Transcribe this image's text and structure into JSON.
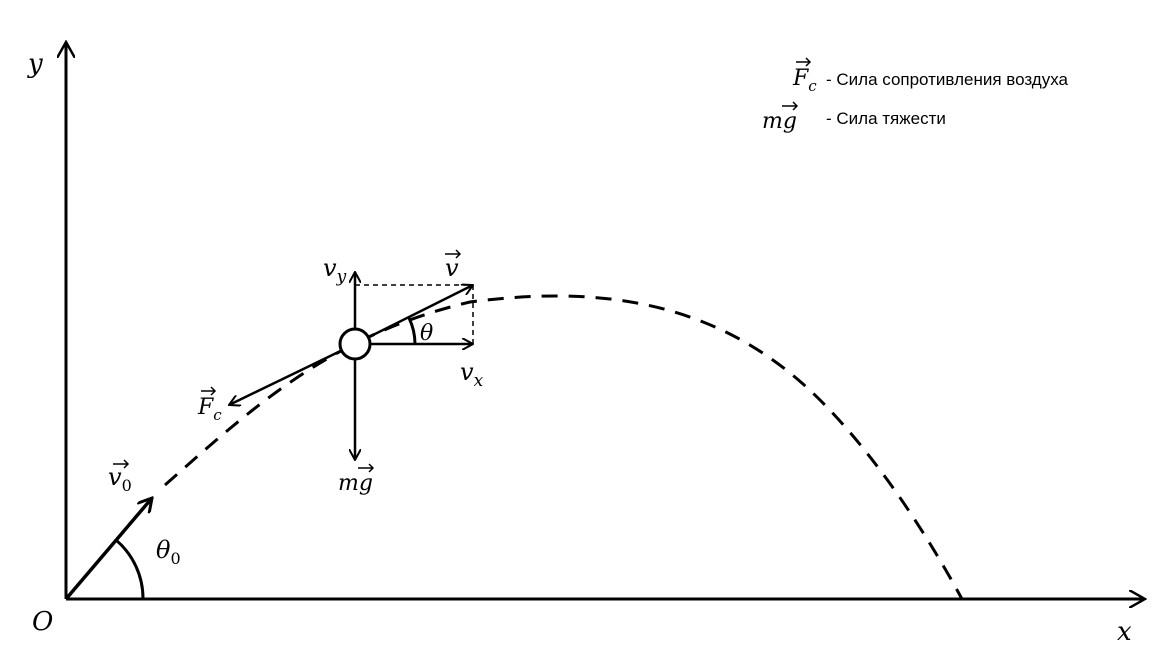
{
  "axes": {
    "origin": "O",
    "x": "x",
    "y": "y"
  },
  "legend": {
    "items": [
      {
        "symbol_base": "F",
        "symbol_sub": "c",
        "text": "- Сила сопротивления воздуха"
      },
      {
        "symbol_base": "mg",
        "symbol_sub": "",
        "text": "- Сила тяжести"
      }
    ]
  },
  "labels": {
    "v0_base": "v",
    "v0_sub": "0",
    "theta0_base": "θ",
    "theta0_sub": "0",
    "theta": "θ",
    "v": "v",
    "vx_base": "v",
    "vx_sub": "x",
    "vy_base": "v",
    "vy_sub": "y",
    "fc_base": "F",
    "fc_sub": "c",
    "mg": "mg"
  },
  "colors": {
    "stroke": "#000000",
    "background": "#ffffff"
  }
}
